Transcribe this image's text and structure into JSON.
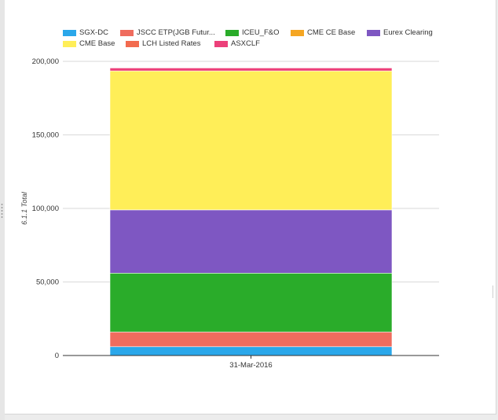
{
  "chart_data": {
    "type": "bar",
    "stacked": true,
    "categories": [
      "31-Mar-2016"
    ],
    "ylabel": "6.1.1 Total",
    "xlabel": "",
    "ylim": [
      0,
      200000
    ],
    "yticks": [
      0,
      50000,
      100000,
      150000,
      200000
    ],
    "ytick_labels": [
      "0",
      "50,000",
      "100,000",
      "150,000",
      "200,000"
    ],
    "grid": true,
    "legend_position": "top",
    "series": [
      {
        "name": "SGX-DC",
        "color": "#2aa7ea",
        "values": [
          6000
        ]
      },
      {
        "name": "JSCC ETP(JGB Futur...",
        "color": "#ef6c5e",
        "values": [
          10000
        ]
      },
      {
        "name": "ICEU_F&O",
        "color": "#2aac2a",
        "values": [
          40000
        ]
      },
      {
        "name": "CME CE Base",
        "color": "#f5a623",
        "values": [
          0
        ]
      },
      {
        "name": "Eurex Clearing",
        "color": "#7e57c2",
        "values": [
          43000
        ]
      },
      {
        "name": "CME Base",
        "color": "#ffee58",
        "values": [
          94500
        ]
      },
      {
        "name": "LCH Listed Rates",
        "color": "#f26b4f",
        "values": [
          0
        ]
      },
      {
        "name": "ASXCLF",
        "color": "#ec407a",
        "values": [
          2000
        ]
      }
    ]
  }
}
